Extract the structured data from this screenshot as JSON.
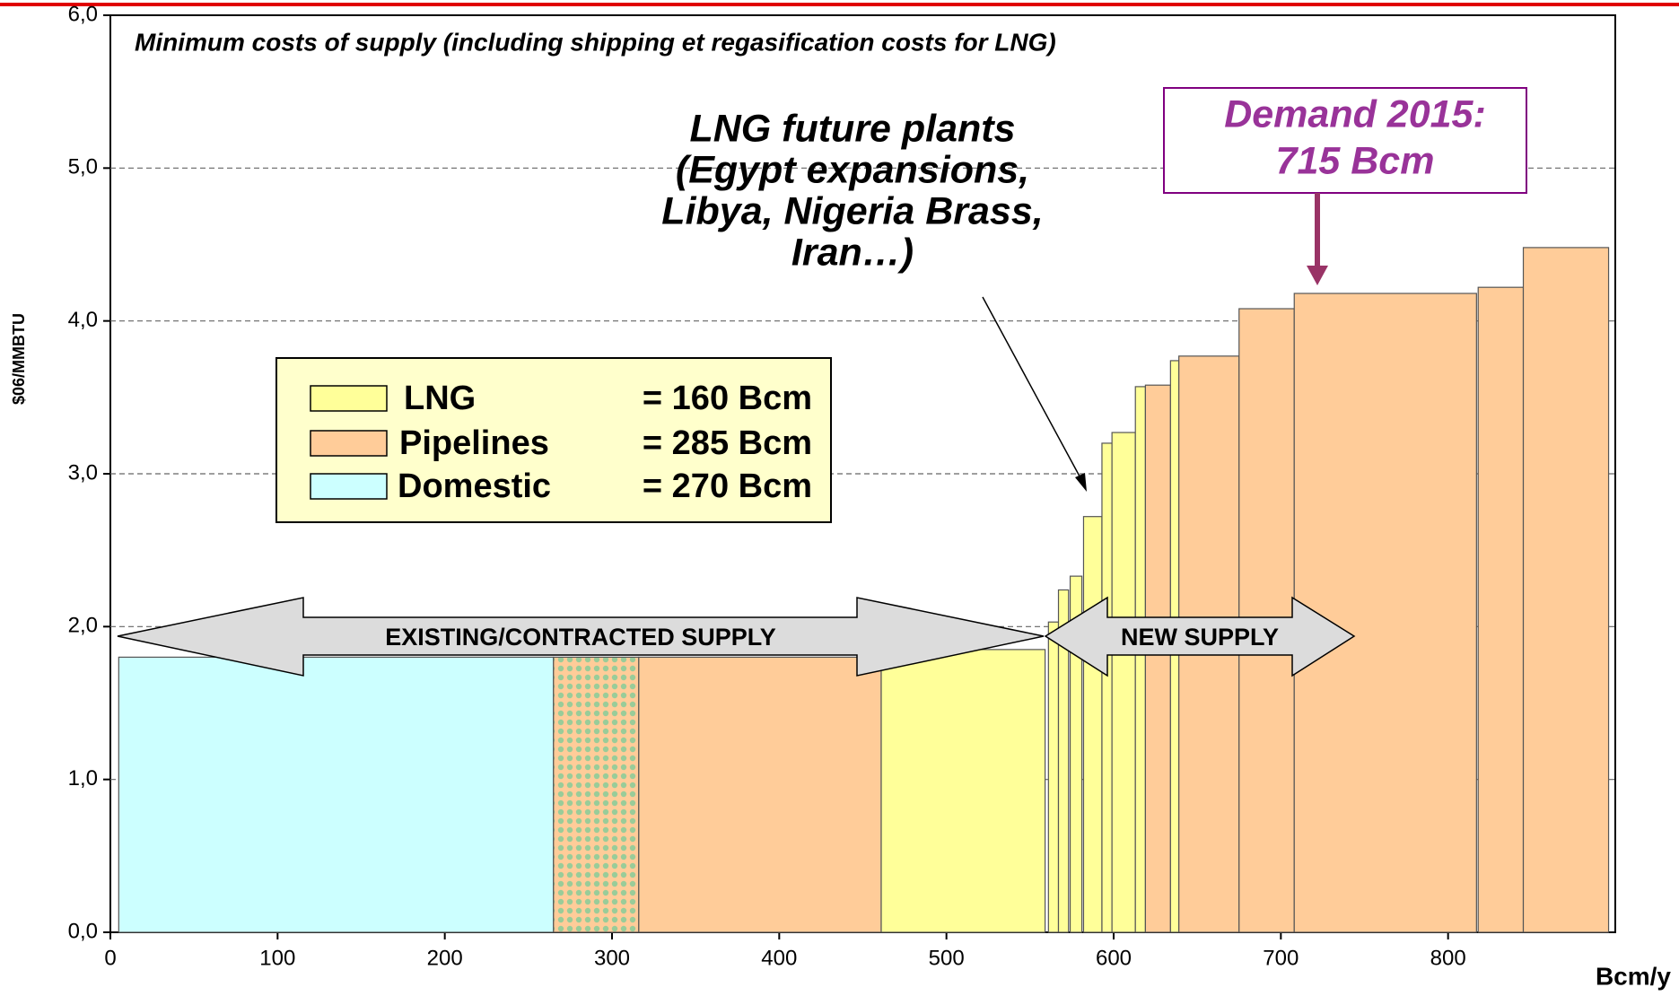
{
  "chart_data": {
    "type": "cost_curve",
    "title": "Minimum costs of supply (including shipping et regasification costs for LNG)",
    "y_label": "$06/MMBTU",
    "x_label": "Bcm/y",
    "xlim": [
      0,
      900
    ],
    "ylim": [
      0,
      6
    ],
    "xticks": [
      0,
      100,
      200,
      300,
      400,
      500,
      600,
      700,
      800
    ],
    "yticks": [
      {
        "value": 0,
        "label": "0,0"
      },
      {
        "value": 1,
        "label": "1,0"
      },
      {
        "value": 2,
        "label": "2,0"
      },
      {
        "value": 3,
        "label": "3,0"
      },
      {
        "value": 4,
        "label": "4,0"
      },
      {
        "value": 5,
        "label": "5,0"
      },
      {
        "value": 6,
        "label": "6,0"
      }
    ],
    "grid": true,
    "legend": [
      {
        "name": "LNG",
        "label": "= 160 Bcm",
        "color": "#ffff99"
      },
      {
        "name": "Pipelines",
        "label": "= 285 Bcm",
        "color": "#ffcc99"
      },
      {
        "name": "Domestic",
        "label": "= 270 Bcm",
        "color": "#ccffff"
      }
    ],
    "bars": [
      {
        "kind": "Domestic",
        "x0": 5,
        "x1": 265,
        "value": 1.8
      },
      {
        "kind": "Pipelines",
        "pattern": "dotted",
        "x0": 265,
        "x1": 316,
        "value": 1.8
      },
      {
        "kind": "Pipelines",
        "x0": 316,
        "x1": 461,
        "value": 1.8
      },
      {
        "kind": "LNG",
        "x0": 461,
        "x1": 559,
        "value": 1.85
      },
      {
        "kind": "LNG",
        "x0": 561,
        "x1": 567,
        "value": 2.03
      },
      {
        "kind": "LNG",
        "x0": 567,
        "x1": 573,
        "value": 2.24
      },
      {
        "kind": "LNG",
        "x0": 574,
        "x1": 581,
        "value": 2.33
      },
      {
        "kind": "LNG",
        "x0": 582,
        "x1": 593,
        "value": 2.72
      },
      {
        "kind": "LNG",
        "x0": 593,
        "x1": 599,
        "value": 3.2
      },
      {
        "kind": "LNG",
        "x0": 599,
        "x1": 613,
        "value": 3.27
      },
      {
        "kind": "LNG",
        "x0": 613,
        "x1": 619,
        "value": 3.57
      },
      {
        "kind": "Pipelines",
        "x0": 619,
        "x1": 634,
        "value": 3.58
      },
      {
        "kind": "LNG",
        "x0": 634,
        "x1": 639,
        "value": 3.74
      },
      {
        "kind": "Pipelines",
        "x0": 639,
        "x1": 675,
        "value": 3.77
      },
      {
        "kind": "Pipelines",
        "x0": 675,
        "x1": 708,
        "value": 4.08
      },
      {
        "kind": "Pipelines",
        "x0": 708,
        "x1": 817,
        "value": 4.18
      },
      {
        "kind": "Pipelines",
        "x0": 818,
        "x1": 845,
        "value": 4.22
      },
      {
        "kind": "Pipelines",
        "x0": 845,
        "x1": 896,
        "value": 4.48
      }
    ],
    "annotations": {
      "lng_future": [
        "LNG future plants",
        "(Egypt expansions,",
        "Libya, Nigeria Brass,",
        "Iran…)"
      ],
      "demand": [
        "Demand 2015:",
        "715 Bcm"
      ],
      "existing": "EXISTING/CONTRACTED SUPPLY",
      "new": "NEW SUPPLY"
    }
  }
}
